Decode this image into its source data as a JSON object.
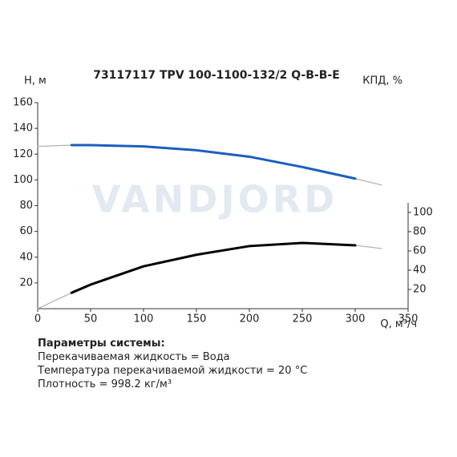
{
  "chart_data": {
    "type": "line",
    "title": "73117117 TPV 100-1100-132/2 Q-B-B-E",
    "ylabel": "H, м",
    "y2label": "КПД, %",
    "xlabel": "Q, м³/ч",
    "watermark": "VANDJORD",
    "x": [
      0,
      32,
      50,
      100,
      150,
      200,
      250,
      300,
      325
    ],
    "series": [
      {
        "color": "#b0b0b0",
        "values": [
          126,
          127,
          127,
          126,
          123,
          118,
          110,
          101,
          96
        ]
      },
      {
        "color": "#1a5fbf",
        "values": [
          null,
          127,
          127,
          126,
          123,
          118,
          110,
          101,
          null
        ]
      },
      {
        "color": "#b0b0b0",
        "axis": "y2",
        "values": [
          0,
          16.5,
          25,
          44,
          56,
          65,
          68.3,
          65.8,
          62.5
        ]
      },
      {
        "color": "#000000",
        "axis": "y2",
        "values": [
          null,
          16.5,
          25,
          44,
          56,
          65,
          68.3,
          65.8,
          null
        ]
      }
    ],
    "xlim": [
      0,
      350
    ],
    "xticks": [
      0,
      50,
      100,
      150,
      200,
      250,
      300,
      350
    ],
    "ylim": [
      0,
      160
    ],
    "yticks": [
      20,
      40,
      60,
      80,
      100,
      120,
      140,
      160
    ],
    "y2lim": [
      0,
      214
    ],
    "y2ticks": [
      20,
      40,
      60,
      80,
      100
    ]
  },
  "parameters": {
    "title": "Параметры системы:",
    "lines": [
      "Перекачиваемая жидкость = Вода",
      "Температура перекачиваемой жидкости = 20 °C",
      "Плотность = 998.2 кг/м³"
    ]
  }
}
